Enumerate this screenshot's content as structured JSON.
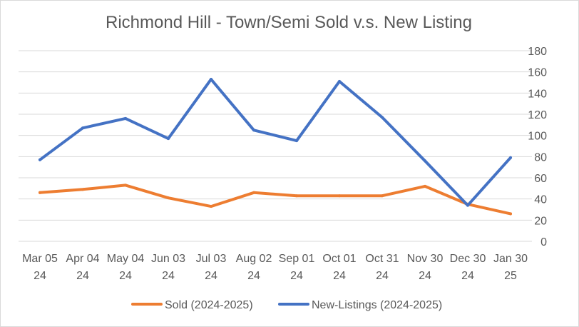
{
  "chart_data": {
    "type": "line",
    "title": "Richmond Hill - Town/Semi Sold v.s. New Listing",
    "categories": [
      [
        "Mar 05",
        "24"
      ],
      [
        "Apr 04",
        "24"
      ],
      [
        "May 04",
        "24"
      ],
      [
        "Jun 03",
        "24"
      ],
      [
        "Jul 03",
        "24"
      ],
      [
        "Aug 02",
        "24"
      ],
      [
        "Sep 01",
        "24"
      ],
      [
        "Oct 01",
        "24"
      ],
      [
        "Oct 31",
        "24"
      ],
      [
        "Nov 30",
        "24"
      ],
      [
        "Dec 30",
        "24"
      ],
      [
        "Jan 30",
        "25"
      ]
    ],
    "series": [
      {
        "name": "Sold (2024-2025)",
        "color": "#ED7D31",
        "values": [
          46,
          49,
          53,
          41,
          33,
          46,
          43,
          43,
          43,
          52,
          35,
          26
        ]
      },
      {
        "name": "New-Listings (2024-2025)",
        "color": "#4472C4",
        "values": [
          77,
          107,
          116,
          97,
          153,
          105,
          95,
          151,
          117,
          76,
          34,
          79
        ]
      }
    ],
    "y_axis": {
      "side": "right",
      "ylim": [
        0,
        180
      ],
      "ticks": [
        0,
        20,
        40,
        60,
        80,
        100,
        120,
        140,
        160,
        180
      ]
    },
    "grid": true,
    "legend": "bottom"
  }
}
